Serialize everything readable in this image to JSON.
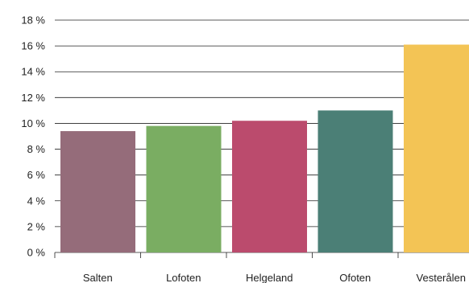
{
  "chart_data": {
    "type": "bar",
    "categories": [
      "Salten",
      "Lofoten",
      "Helgeland",
      "Ofoten",
      "Vesterålen"
    ],
    "values": [
      9.4,
      9.8,
      10.2,
      11.0,
      16.1
    ],
    "ylim": [
      0,
      18
    ],
    "yticks": [
      0,
      2,
      4,
      6,
      8,
      10,
      12,
      14,
      16,
      18
    ],
    "ytick_labels": [
      "0 %",
      "2 %",
      "4 %",
      "6 %",
      "8 %",
      "10 %",
      "12 %",
      "14 %",
      "16 %",
      "18 %"
    ],
    "colors": [
      "#956c7a",
      "#7aad62",
      "#bb4b6d",
      "#4b7f76",
      "#f3c455"
    ],
    "grid": true,
    "title": "",
    "xlabel": "",
    "ylabel": ""
  }
}
